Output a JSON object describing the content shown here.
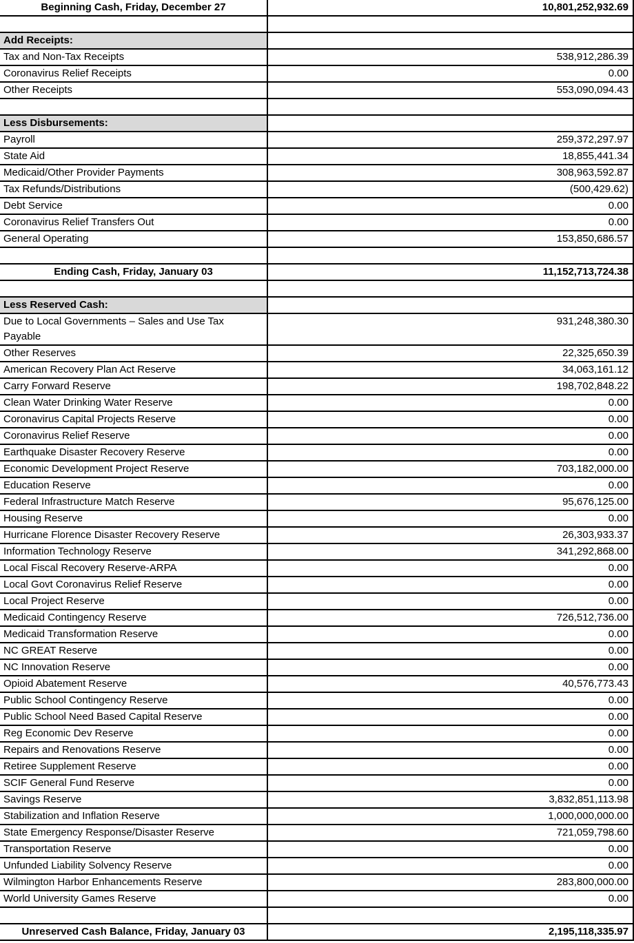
{
  "colors": {
    "section_header_bg": "#d9d9d9",
    "border": "#000000",
    "text": "#000000"
  },
  "rows": [
    {
      "type": "total",
      "label": "Beginning Cash, Friday, December 27",
      "value": "10,801,252,932.69"
    },
    {
      "type": "blank",
      "label": "",
      "value": ""
    },
    {
      "type": "section",
      "label": "Add Receipts:",
      "value": ""
    },
    {
      "type": "item",
      "label": "Tax and Non-Tax Receipts",
      "value": "538,912,286.39"
    },
    {
      "type": "item",
      "label": "Coronavirus Relief Receipts",
      "value": "0.00"
    },
    {
      "type": "item",
      "label": "Other Receipts",
      "value": "553,090,094.43"
    },
    {
      "type": "blank",
      "label": "",
      "value": ""
    },
    {
      "type": "section",
      "label": "Less Disbursements:",
      "value": ""
    },
    {
      "type": "item",
      "label": "Payroll",
      "value": "259,372,297.97"
    },
    {
      "type": "item",
      "label": "State Aid",
      "value": "18,855,441.34"
    },
    {
      "type": "item",
      "label": "Medicaid/Other Provider Payments",
      "value": "308,963,592.87"
    },
    {
      "type": "item",
      "label": "Tax Refunds/Distributions",
      "value": "(500,429.62)"
    },
    {
      "type": "item",
      "label": "Debt Service",
      "value": "0.00"
    },
    {
      "type": "item",
      "label": "Coronavirus Relief Transfers Out",
      "value": "0.00"
    },
    {
      "type": "item",
      "label": "General Operating",
      "value": "153,850,686.57"
    },
    {
      "type": "blank",
      "label": "",
      "value": ""
    },
    {
      "type": "total",
      "label": "Ending Cash, Friday, January 03",
      "value": "11,152,713,724.38"
    },
    {
      "type": "blank",
      "label": "",
      "value": ""
    },
    {
      "type": "section",
      "label": "Less Reserved Cash:",
      "value": ""
    },
    {
      "type": "item",
      "label": "Due to Local Governments – Sales and Use Tax\nPayable",
      "value": "931,248,380.30"
    },
    {
      "type": "item",
      "label": "Other Reserves",
      "value": "22,325,650.39"
    },
    {
      "type": "item",
      "label": "American Recovery Plan Act Reserve",
      "value": "34,063,161.12"
    },
    {
      "type": "item",
      "label": "Carry Forward Reserve",
      "value": "198,702,848.22"
    },
    {
      "type": "item",
      "label": "Clean Water Drinking Water Reserve",
      "value": "0.00"
    },
    {
      "type": "item",
      "label": "Coronavirus Capital Projects Reserve",
      "value": "0.00"
    },
    {
      "type": "item",
      "label": "Coronavirus Relief Reserve",
      "value": "0.00"
    },
    {
      "type": "item",
      "label": "Earthquake Disaster Recovery Reserve",
      "value": "0.00"
    },
    {
      "type": "item",
      "label": "Economic Development Project Reserve",
      "value": "703,182,000.00"
    },
    {
      "type": "item",
      "label": "Education Reserve",
      "value": "0.00"
    },
    {
      "type": "item",
      "label": "Federal Infrastructure Match Reserve",
      "value": "95,676,125.00"
    },
    {
      "type": "item",
      "label": "Housing Reserve",
      "value": "0.00"
    },
    {
      "type": "item",
      "label": "Hurricane Florence Disaster Recovery Reserve",
      "value": "26,303,933.37"
    },
    {
      "type": "item",
      "label": "Information Technology Reserve",
      "value": "341,292,868.00"
    },
    {
      "type": "item",
      "label": "Local Fiscal Recovery Reserve-ARPA",
      "value": "0.00"
    },
    {
      "type": "item",
      "label": "Local Govt Coronavirus Relief Reserve",
      "value": "0.00"
    },
    {
      "type": "item",
      "label": "Local Project Reserve",
      "value": "0.00"
    },
    {
      "type": "item",
      "label": "Medicaid Contingency Reserve",
      "value": "726,512,736.00"
    },
    {
      "type": "item",
      "label": "Medicaid Transformation Reserve",
      "value": "0.00"
    },
    {
      "type": "item",
      "label": "NC GREAT Reserve",
      "value": "0.00"
    },
    {
      "type": "item",
      "label": "NC Innovation Reserve",
      "value": "0.00"
    },
    {
      "type": "item",
      "label": "Opioid Abatement Reserve",
      "value": "40,576,773.43"
    },
    {
      "type": "item",
      "label": "Public School Contingency Reserve",
      "value": "0.00"
    },
    {
      "type": "item",
      "label": "Public School Need Based Capital Reserve",
      "value": "0.00"
    },
    {
      "type": "item",
      "label": "Reg Economic Dev Reserve",
      "value": "0.00"
    },
    {
      "type": "item",
      "label": "Repairs and Renovations Reserve",
      "value": "0.00"
    },
    {
      "type": "item",
      "label": "Retiree Supplement Reserve",
      "value": "0.00"
    },
    {
      "type": "item",
      "label": "SCIF General Fund Reserve",
      "value": "0.00"
    },
    {
      "type": "item",
      "label": "Savings Reserve",
      "value": "3,832,851,113.98"
    },
    {
      "type": "item",
      "label": "Stabilization and Inflation Reserve",
      "value": "1,000,000,000.00"
    },
    {
      "type": "item",
      "label": "State Emergency Response/Disaster Reserve",
      "value": "721,059,798.60"
    },
    {
      "type": "item",
      "label": "Transportation Reserve",
      "value": "0.00"
    },
    {
      "type": "item",
      "label": "Unfunded Liability Solvency Reserve",
      "value": "0.00"
    },
    {
      "type": "item",
      "label": "Wilmington Harbor Enhancements Reserve",
      "value": "283,800,000.00"
    },
    {
      "type": "item",
      "label": "World University Games Reserve",
      "value": "0.00"
    },
    {
      "type": "blank",
      "label": "",
      "value": ""
    },
    {
      "type": "total",
      "label": "Unreserved Cash Balance, Friday, January 03",
      "value": "2,195,118,335.97"
    }
  ]
}
